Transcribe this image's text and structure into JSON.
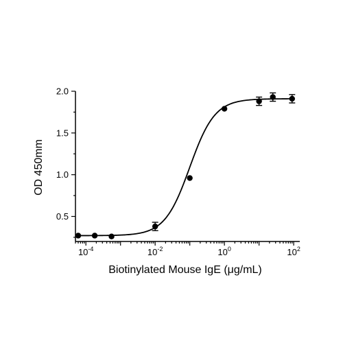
{
  "chart_data": {
    "type": "scatter",
    "title": "",
    "xlabel": "Biotinylated Mouse IgE (μg/mL)",
    "ylabel": "OD 450mm",
    "x_scale": "log",
    "xlim": [
      5e-05,
      150
    ],
    "ylim": [
      0.2,
      2.0
    ],
    "x_ticks": [
      0.0001,
      0.01,
      1,
      100
    ],
    "x_tick_labels": [
      {
        "base": "10",
        "exp": "-4"
      },
      {
        "base": "10",
        "exp": "-2"
      },
      {
        "base": "10",
        "exp": "0"
      },
      {
        "base": "10",
        "exp": "2"
      }
    ],
    "y_ticks": [
      0.5,
      1.0,
      1.5,
      2.0
    ],
    "y_tick_labels": [
      "0.5",
      "1.0",
      "1.5",
      "2.0"
    ],
    "grid": false,
    "legend": "none",
    "series": [
      {
        "points": [
          {
            "x": 6e-05,
            "y": 0.27,
            "err": 0.0
          },
          {
            "x": 0.00018,
            "y": 0.27,
            "err": 0.0
          },
          {
            "x": 0.00055,
            "y": 0.26,
            "err": 0.0
          },
          {
            "x": 0.01,
            "y": 0.38,
            "err": 0.05
          },
          {
            "x": 0.1,
            "y": 0.96,
            "err": 0.0
          },
          {
            "x": 1,
            "y": 1.79,
            "err": 0.0
          },
          {
            "x": 10,
            "y": 1.88,
            "err": 0.05
          },
          {
            "x": 25,
            "y": 1.93,
            "err": 0.05
          },
          {
            "x": 90,
            "y": 1.91,
            "err": 0.05
          }
        ]
      }
    ],
    "fit_curve": {
      "model": "4PL",
      "bottom": 0.27,
      "top": 1.91,
      "ec50": 0.1,
      "hill": 1.2
    },
    "colors": {
      "marker": "#000000",
      "line": "#000000",
      "axis": "#000000"
    }
  }
}
